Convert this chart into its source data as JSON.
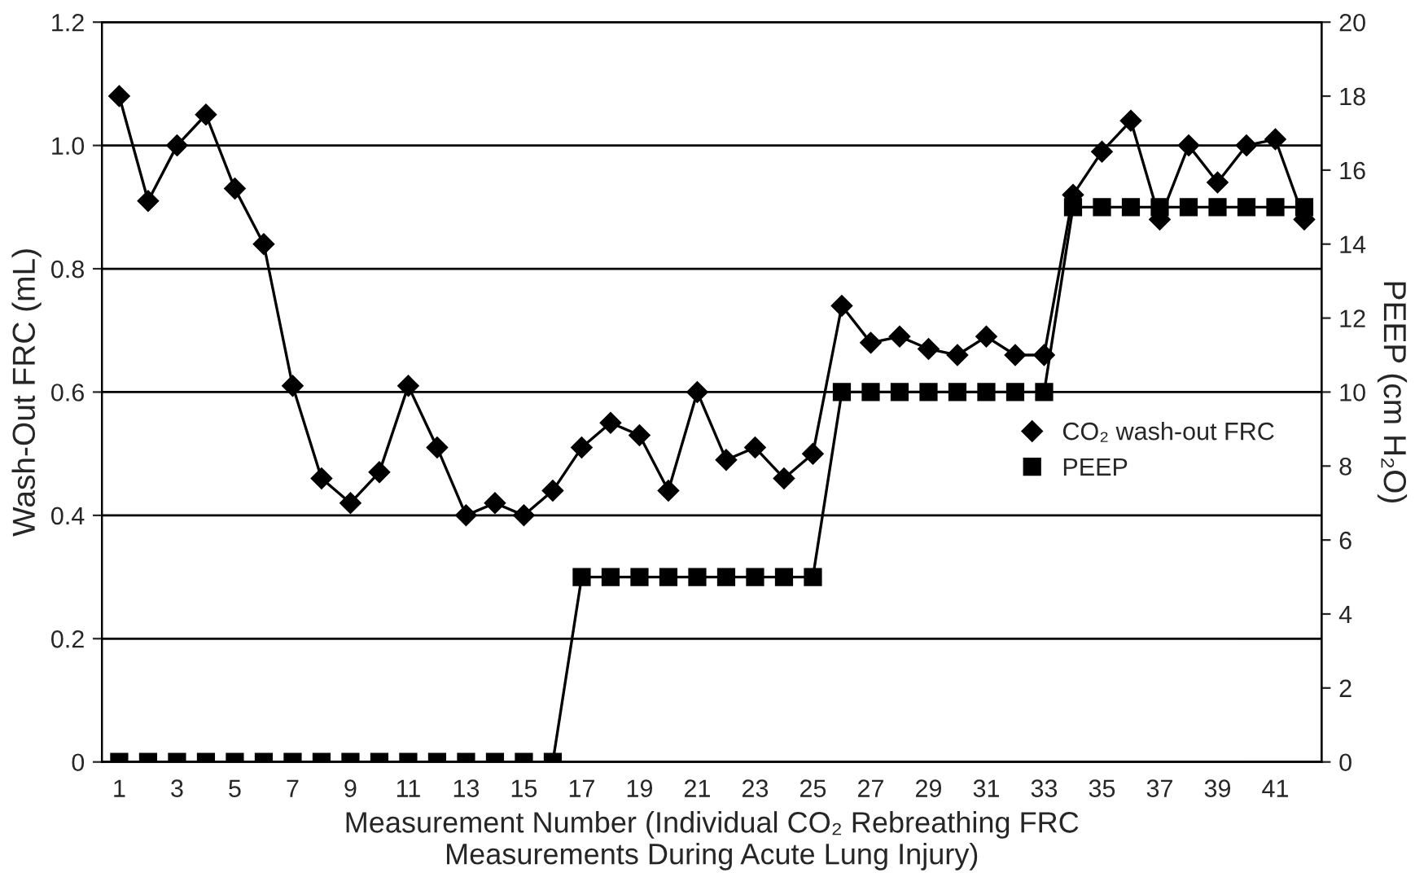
{
  "chart_data": {
    "type": "line",
    "xlabel": "Measurement Number (Individual CO₂ Rebreathing FRC\nMeasurements During Acute Lung Injury)",
    "ylabel": "Wash-Out FRC (mL)",
    "y2label": "PEEP (cm H₂O)",
    "x": [
      1,
      2,
      3,
      4,
      5,
      6,
      7,
      8,
      9,
      10,
      11,
      12,
      13,
      14,
      15,
      16,
      17,
      18,
      19,
      20,
      21,
      22,
      23,
      24,
      25,
      26,
      27,
      28,
      29,
      30,
      31,
      32,
      33,
      34,
      35,
      36,
      37,
      38,
      39,
      40,
      41,
      42
    ],
    "xlim": [
      0.4,
      42.6
    ],
    "xticks": [
      1,
      3,
      5,
      7,
      9,
      11,
      13,
      15,
      17,
      19,
      21,
      23,
      25,
      27,
      29,
      31,
      33,
      35,
      37,
      39,
      41
    ],
    "ylim": [
      0,
      1.2
    ],
    "yticks": [
      0,
      {
        "value": 0.2,
        "label": "0.2"
      },
      {
        "value": 0.4,
        "label": "0.4"
      },
      {
        "value": 0.6,
        "label": "0.6"
      },
      {
        "value": 0.8,
        "label": "0.8"
      },
      {
        "value": 1,
        "label": "1.0"
      },
      {
        "value": 1.2,
        "label": "1.2"
      }
    ],
    "y2lim": [
      0,
      20
    ],
    "y2ticks": [
      0,
      2,
      4,
      6,
      8,
      10,
      12,
      14,
      16,
      18,
      20
    ],
    "grid": "y",
    "legend": "right",
    "series": [
      {
        "name": "CO₂ wash-out FRC",
        "color": "#000000",
        "marker": "diamond",
        "values": [
          1.08,
          0.91,
          1.0,
          1.05,
          0.93,
          0.84,
          0.61,
          0.46,
          0.42,
          0.47,
          0.61,
          0.51,
          0.4,
          0.42,
          0.4,
          0.44,
          0.51,
          0.55,
          0.53,
          0.44,
          0.6,
          0.49,
          0.51,
          0.46,
          0.5,
          0.74,
          0.68,
          0.69,
          0.67,
          0.66,
          0.69,
          0.66,
          0.66,
          0.92,
          0.99,
          1.04,
          0.88,
          1.0,
          0.94,
          1.0,
          1.01,
          0.88
        ]
      },
      {
        "name": "PEEP",
        "color": "#000000",
        "marker": "square",
        "axis": "y2",
        "values": [
          0,
          0,
          0,
          0,
          0,
          0,
          0,
          0,
          0,
          0,
          0,
          0,
          0,
          0,
          0,
          0,
          5,
          5,
          5,
          5,
          5,
          5,
          5,
          5,
          5,
          10,
          10,
          10,
          10,
          10,
          10,
          10,
          10,
          15,
          15,
          15,
          15,
          15,
          15,
          15,
          15,
          15
        ]
      }
    ]
  }
}
